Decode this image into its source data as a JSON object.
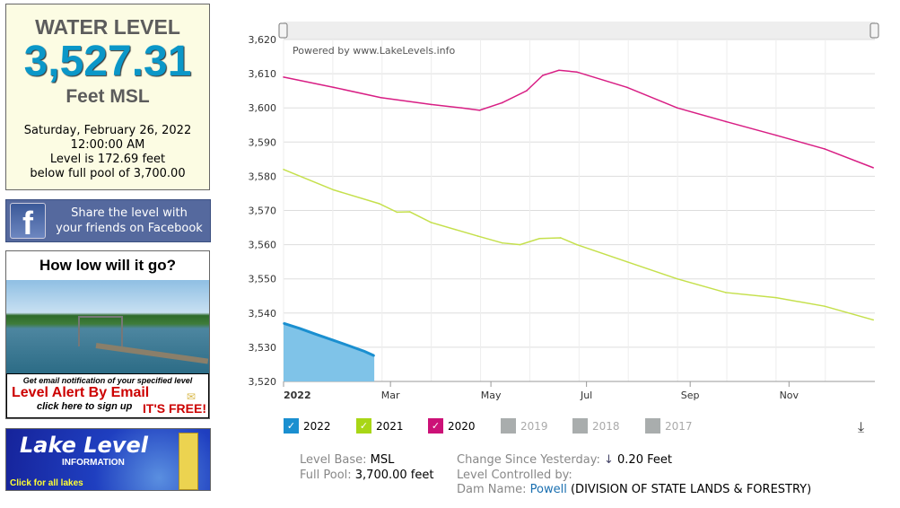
{
  "panel": {
    "title": "WATER LEVEL",
    "level": "3,527.31",
    "unit": "Feet MSL",
    "date": "Saturday, February 26, 2022",
    "time": "12:00:00 AM",
    "line1": "Level is 172.69 feet",
    "line2": "below full pool of 3,700.00"
  },
  "facebook": {
    "line1": "Share the level with",
    "line2": "your friends on Facebook"
  },
  "alert": {
    "title": "How low will it go?",
    "sub": "Get email notification of your specified level",
    "main": "Level Alert By Email",
    "cta": "click here to sign up",
    "free": "IT'S FREE!"
  },
  "lakelevel": {
    "title": "Lake Level",
    "sub": "INFORMATION",
    "cta": "Click for all lakes"
  },
  "chart_data": {
    "type": "line",
    "credit": "Powered by www.LakeLevels.info",
    "xlabel": "",
    "ylabel": "",
    "ylim": [
      3520,
      3620
    ],
    "yticks": [
      "3,620",
      "3,610",
      "3,600",
      "3,590",
      "3,580",
      "3,570",
      "3,560",
      "3,550",
      "3,540",
      "3,530",
      "3,520"
    ],
    "xlim": [
      0,
      365
    ],
    "xticks": [
      {
        "day": 0,
        "label": "2022",
        "bold": true
      },
      {
        "day": 66,
        "label": "Mar"
      },
      {
        "day": 128,
        "label": "May"
      },
      {
        "day": 187,
        "label": "Jul"
      },
      {
        "day": 251,
        "label": "Sep"
      },
      {
        "day": 312,
        "label": "Nov"
      }
    ],
    "series": [
      {
        "name": "2022",
        "color": "#1a8fd0",
        "fill": true,
        "x": [
          0,
          10,
          20,
          31,
          40,
          50,
          56
        ],
        "y": [
          3537,
          3535.5,
          3533.8,
          3532,
          3530.5,
          3528.8,
          3527.5
        ]
      },
      {
        "name": "2021",
        "color": "#c5e04c",
        "x": [
          0,
          31,
          59,
          70,
          78,
          91,
          120,
          135,
          146,
          158,
          171,
          181,
          212,
          243,
          273,
          304,
          334,
          364
        ],
        "y": [
          3582,
          3576,
          3572,
          3569.5,
          3569.6,
          3566.5,
          3562.5,
          3560.5,
          3560,
          3561.8,
          3562,
          3560,
          3555,
          3550,
          3546,
          3544.5,
          3542,
          3538
        ]
      },
      {
        "name": "2020",
        "color": "#d81e84",
        "x": [
          0,
          31,
          60,
          91,
          110,
          121,
          135,
          150,
          160,
          170,
          181,
          212,
          243,
          273,
          304,
          334,
          364
        ],
        "y": [
          3609,
          3606,
          3603,
          3601,
          3600,
          3599.3,
          3601.5,
          3605,
          3609.5,
          3611,
          3610.5,
          3606,
          3600,
          3596,
          3592,
          3588,
          3582.5
        ]
      }
    ]
  },
  "legend": [
    {
      "label": "2022",
      "color": "#1a8fd0",
      "on": true
    },
    {
      "label": "2021",
      "color": "#a8d616",
      "on": true
    },
    {
      "label": "2020",
      "color": "#cc1177",
      "on": true
    },
    {
      "label": "2019",
      "color": "#a9adad",
      "on": false
    },
    {
      "label": "2018",
      "color": "#a9adad",
      "on": false
    },
    {
      "label": "2017",
      "color": "#a9adad",
      "on": false
    }
  ],
  "meta": {
    "base_label": "Level Base:",
    "base": "MSL",
    "pool_label": "Full Pool:",
    "pool": "3,700.00 feet",
    "change_label": "Change Since Yesterday:",
    "change_arrow": "↓",
    "change": "0.20 Feet",
    "controlled": "Level Controlled by:",
    "dam_label": "Dam Name:",
    "dam": "Powell",
    "agency": "(DIVISION OF STATE LANDS & FORESTRY)"
  }
}
